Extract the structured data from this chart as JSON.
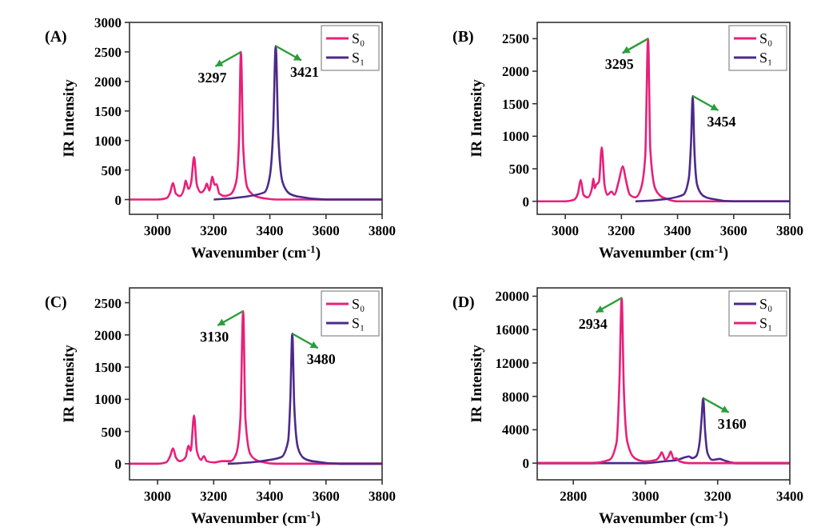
{
  "chart_data": [
    {
      "type": "line",
      "title": "(A)",
      "xlabel": "Wavenumber (cm$^{-1}$)",
      "ylabel": "IR Intensity",
      "xlim": [
        2900,
        3800
      ],
      "ylim": [
        -250,
        3000
      ],
      "xticks": [
        3000,
        3200,
        3400,
        3600,
        3800
      ],
      "yticks": [
        0,
        500,
        1000,
        1500,
        2000,
        2500,
        3000
      ],
      "legend": "top right",
      "annotations": [
        {
          "text": "3297",
          "x": 3297,
          "y": 2500
        },
        {
          "text": "3421",
          "x": 3421,
          "y": 2600
        }
      ],
      "series": [
        {
          "name": "S₀",
          "color": "#e8207a",
          "x": [
            2900,
            3000,
            3030,
            3045,
            3055,
            3065,
            3080,
            3095,
            3100,
            3110,
            3120,
            3130,
            3140,
            3155,
            3170,
            3175,
            3185,
            3195,
            3203,
            3210,
            3220,
            3240,
            3260,
            3280,
            3290,
            3297,
            3305,
            3320,
            3340,
            3360,
            3380,
            3420,
            3500,
            3800
          ],
          "values": [
            0,
            0,
            20,
            120,
            280,
            100,
            60,
            200,
            320,
            180,
            300,
            720,
            250,
            120,
            200,
            270,
            150,
            390,
            250,
            260,
            100,
            60,
            90,
            300,
            1000,
            2500,
            900,
            200,
            80,
            40,
            20,
            0,
            0,
            0
          ]
        },
        {
          "name": "S₁",
          "color": "#4b2a8a",
          "x": [
            3200,
            3300,
            3380,
            3400,
            3412,
            3421,
            3430,
            3445,
            3470,
            3500,
            3600,
            3800
          ],
          "values": [
            0,
            40,
            120,
            400,
            1200,
            2600,
            1100,
            300,
            100,
            50,
            0,
            0
          ]
        }
      ]
    },
    {
      "type": "line",
      "title": "(B)",
      "xlabel": "Wavenumber (cm$^{-1}$)",
      "ylabel": "IR Intensity",
      "xlim": [
        2900,
        3800
      ],
      "ylim": [
        -200,
        2750
      ],
      "xticks": [
        3000,
        3200,
        3400,
        3600,
        3800
      ],
      "yticks": [
        0,
        500,
        1000,
        1500,
        2000,
        2500
      ],
      "legend": "top right",
      "annotations": [
        {
          "text": "3295",
          "x": 3295,
          "y": 2500
        },
        {
          "text": "3454",
          "x": 3454,
          "y": 1620
        }
      ],
      "series": [
        {
          "name": "S₀",
          "color": "#e8207a",
          "x": [
            2900,
            3000,
            3030,
            3045,
            3055,
            3065,
            3080,
            3095,
            3100,
            3105,
            3110,
            3120,
            3130,
            3140,
            3150,
            3165,
            3175,
            3190,
            3205,
            3215,
            3230,
            3250,
            3270,
            3285,
            3295,
            3303,
            3320,
            3340,
            3360,
            3400,
            3500,
            3800
          ],
          "values": [
            0,
            0,
            20,
            120,
            330,
            100,
            60,
            200,
            350,
            200,
            250,
            300,
            830,
            250,
            100,
            150,
            100,
            300,
            540,
            350,
            100,
            60,
            200,
            700,
            2500,
            800,
            200,
            80,
            40,
            0,
            0,
            0
          ]
        },
        {
          "name": "S₁",
          "color": "#4b2a8a",
          "x": [
            3250,
            3350,
            3420,
            3440,
            3448,
            3454,
            3460,
            3470,
            3490,
            3520,
            3600,
            3800
          ],
          "values": [
            0,
            30,
            100,
            350,
            900,
            1620,
            800,
            250,
            90,
            40,
            0,
            0
          ]
        }
      ]
    },
    {
      "type": "line",
      "title": "(C)",
      "xlabel": "Wavenumber (cm$^{-1}$)",
      "ylabel": "IR Intensity",
      "xlim": [
        2900,
        3800
      ],
      "ylim": [
        -250,
        2730
      ],
      "xticks": [
        3000,
        3200,
        3400,
        3600,
        3800
      ],
      "yticks": [
        0,
        500,
        1000,
        1500,
        2000,
        2500
      ],
      "legend": "top right",
      "annotations": [
        {
          "text": "3130",
          "x": 3305,
          "y": 2370
        },
        {
          "text": "3480",
          "x": 3480,
          "y": 2020
        }
      ],
      "series": [
        {
          "name": "S₀",
          "color": "#e8207a",
          "x": [
            2900,
            3000,
            3030,
            3045,
            3055,
            3065,
            3080,
            3100,
            3110,
            3118,
            3130,
            3140,
            3155,
            3165,
            3175,
            3200,
            3230,
            3260,
            3280,
            3295,
            3305,
            3313,
            3330,
            3350,
            3380,
            3420,
            3500,
            3800
          ],
          "values": [
            0,
            0,
            20,
            120,
            240,
            100,
            40,
            100,
            280,
            200,
            750,
            200,
            60,
            120,
            40,
            20,
            40,
            40,
            150,
            700,
            2370,
            700,
            150,
            60,
            20,
            0,
            0,
            0
          ]
        },
        {
          "name": "S₁",
          "color": "#4b2a8a",
          "x": [
            3250,
            3350,
            3440,
            3465,
            3473,
            3480,
            3487,
            3500,
            3520,
            3550,
            3650,
            3800
          ],
          "values": [
            0,
            30,
            100,
            350,
            1000,
            2020,
            900,
            250,
            90,
            40,
            0,
            0
          ]
        }
      ]
    },
    {
      "type": "line",
      "title": "(D)",
      "xlabel": "Wavenumber (cm$^{-1}$)",
      "ylabel": "IR Intensity",
      "xlim": [
        2700,
        3400
      ],
      "ylim": [
        -2000,
        21000
      ],
      "xticks": [
        2800,
        3000,
        3200,
        3400
      ],
      "yticks": [
        0,
        4000,
        8000,
        12000,
        16000,
        20000
      ],
      "legend": "top right",
      "annotations": [
        {
          "text": "2934",
          "x": 2934,
          "y": 19800
        },
        {
          "text": "3160",
          "x": 3160,
          "y": 7800
        }
      ],
      "series": [
        {
          "name": "S₀",
          "color": "#4b2a8a",
          "x": [
            2700,
            2900,
            3000,
            3050,
            3090,
            3110,
            3120,
            3130,
            3140,
            3150,
            3155,
            3160,
            3165,
            3172,
            3185,
            3205,
            3220,
            3250,
            3300,
            3400
          ],
          "values": [
            0,
            0,
            0,
            200,
            400,
            700,
            800,
            600,
            800,
            2500,
            5000,
            7800,
            4000,
            1200,
            400,
            500,
            300,
            0,
            0,
            0
          ]
        },
        {
          "name": "S₁",
          "color": "#e8207a",
          "x": [
            2700,
            2850,
            2900,
            2920,
            2928,
            2934,
            2940,
            2950,
            2970,
            3000,
            3030,
            3040,
            3045,
            3055,
            3065,
            3070,
            3078,
            3085,
            3095,
            3120,
            3200,
            3400
          ],
          "values": [
            0,
            0,
            400,
            2500,
            10000,
            19800,
            9000,
            2500,
            600,
            200,
            400,
            900,
            1300,
            400,
            900,
            1400,
            500,
            600,
            200,
            0,
            0,
            0
          ]
        }
      ]
    }
  ]
}
